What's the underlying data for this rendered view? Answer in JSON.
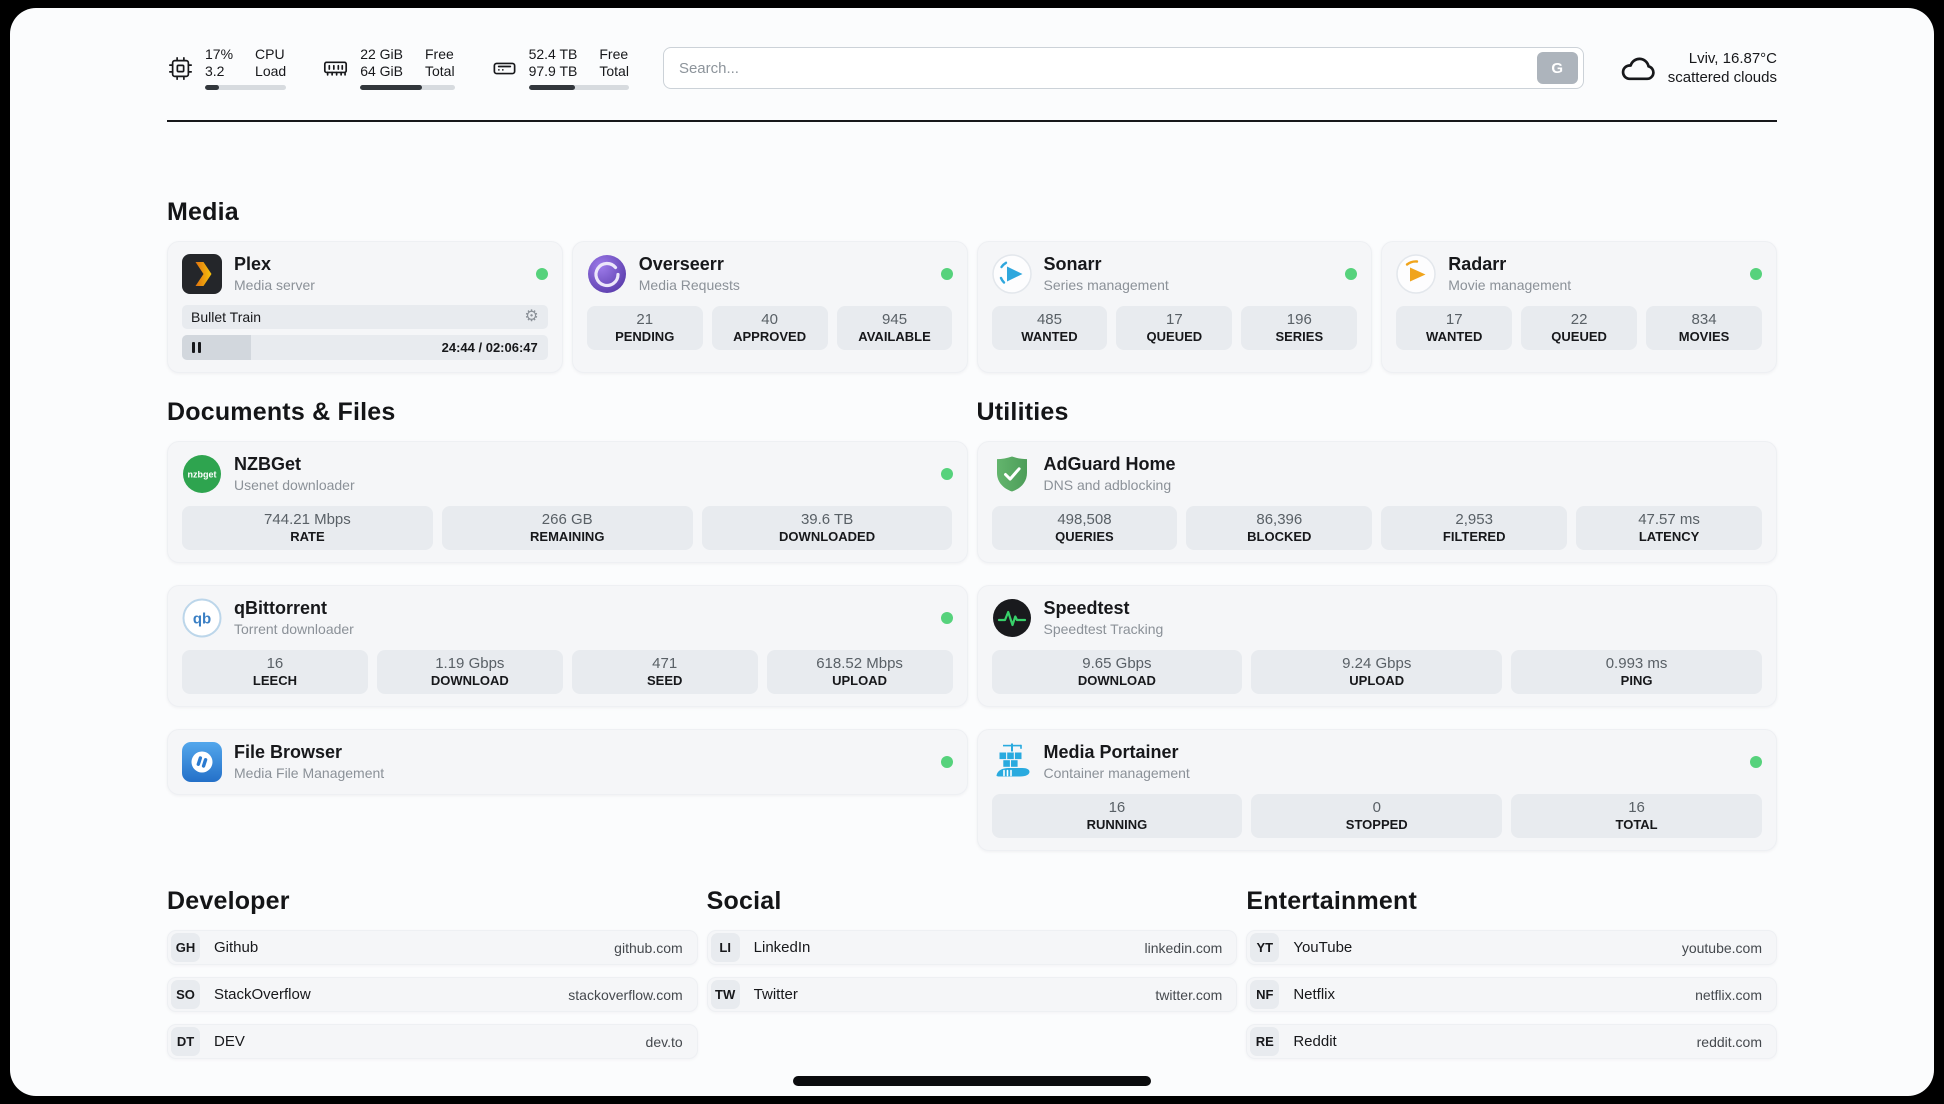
{
  "colors": {
    "status_online": "#56d27c",
    "page_background": "#fbfcfd",
    "card_background": "#f5f6f8",
    "stat_background": "#e8ebef",
    "text_dark": "#17181b",
    "text_muted": "#8b9198",
    "plex_gold": "#e5a00d",
    "sonarr_blue": "#2fa7dd",
    "radarr_gold": "#f0a41c",
    "adguard_green": "#5bab65",
    "portainer_blue": "#29aadf"
  },
  "icons": {
    "gear": "⚙"
  },
  "header": {
    "cpu": {
      "value_1": "17%",
      "label_1": "CPU",
      "value_2": "3.2",
      "label_2": "Load",
      "progress_pct": 17
    },
    "ram": {
      "value_1": "22 GiB",
      "label_1": "Free",
      "value_2": "64 GiB",
      "label_2": "Total",
      "progress_pct": 66
    },
    "disk": {
      "value_1": "52.4 TB",
      "label_1": "Free",
      "value_2": "97.9 TB",
      "label_2": "Total",
      "progress_pct": 46
    },
    "search": {
      "placeholder": "Search...",
      "button_label": "G"
    },
    "weather": {
      "location": "Lviv, 16.87°C",
      "condition": "scattered clouds"
    }
  },
  "media": {
    "title": "Media",
    "plex": {
      "title": "Plex",
      "subtitle": "Media server",
      "now_playing": "Bullet Train",
      "time": "24:44 / 02:06:47",
      "progress_pct": 19
    },
    "overseerr": {
      "title": "Overseerr",
      "subtitle": "Media Requests",
      "stats": [
        {
          "value": "21",
          "label": "PENDING"
        },
        {
          "value": "40",
          "label": "APPROVED"
        },
        {
          "value": "945",
          "label": "AVAILABLE"
        }
      ]
    },
    "sonarr": {
      "title": "Sonarr",
      "subtitle": "Series management",
      "stats": [
        {
          "value": "485",
          "label": "WANTED"
        },
        {
          "value": "17",
          "label": "QUEUED"
        },
        {
          "value": "196",
          "label": "SERIES"
        }
      ]
    },
    "radarr": {
      "title": "Radarr",
      "subtitle": "Movie management",
      "stats": [
        {
          "value": "17",
          "label": "WANTED"
        },
        {
          "value": "22",
          "label": "QUEUED"
        },
        {
          "value": "834",
          "label": "MOVIES"
        }
      ]
    }
  },
  "documents": {
    "title": "Documents & Files",
    "nzbget": {
      "title": "NZBGet",
      "subtitle": "Usenet downloader",
      "stats": [
        {
          "value": "744.21 Mbps",
          "label": "RATE"
        },
        {
          "value": "266 GB",
          "label": "REMAINING"
        },
        {
          "value": "39.6 TB",
          "label": "DOWNLOADED"
        }
      ]
    },
    "qbittorrent": {
      "title": "qBittorrent",
      "subtitle": "Torrent downloader",
      "stats": [
        {
          "value": "16",
          "label": "LEECH"
        },
        {
          "value": "1.19 Gbps",
          "label": "DOWNLOAD"
        },
        {
          "value": "471",
          "label": "SEED"
        },
        {
          "value": "618.52 Mbps",
          "label": "UPLOAD"
        }
      ]
    },
    "filebrowser": {
      "title": "File Browser",
      "subtitle": "Media File Management"
    }
  },
  "utilities": {
    "title": "Utilities",
    "adguard": {
      "title": "AdGuard Home",
      "subtitle": "DNS and adblocking",
      "stats": [
        {
          "value": "498,508",
          "label": "QUERIES"
        },
        {
          "value": "86,396",
          "label": "BLOCKED"
        },
        {
          "value": "2,953",
          "label": "FILTERED"
        },
        {
          "value": "47.57 ms",
          "label": "LATENCY"
        }
      ]
    },
    "speedtest": {
      "title": "Speedtest",
      "subtitle": "Speedtest Tracking",
      "stats": [
        {
          "value": "9.65 Gbps",
          "label": "DOWNLOAD"
        },
        {
          "value": "9.24 Gbps",
          "label": "UPLOAD"
        },
        {
          "value": "0.993 ms",
          "label": "PING"
        }
      ]
    },
    "portainer": {
      "title": "Media Portainer",
      "subtitle": "Container management",
      "stats": [
        {
          "value": "16",
          "label": "RUNNING"
        },
        {
          "value": "0",
          "label": "STOPPED"
        },
        {
          "value": "16",
          "label": "TOTAL"
        }
      ]
    }
  },
  "bookmarks": {
    "developer": {
      "title": "Developer",
      "items": [
        {
          "abbr": "GH",
          "name": "Github",
          "url": "github.com"
        },
        {
          "abbr": "SO",
          "name": "StackOverflow",
          "url": "stackoverflow.com"
        },
        {
          "abbr": "DT",
          "name": "DEV",
          "url": "dev.to"
        }
      ]
    },
    "social": {
      "title": "Social",
      "items": [
        {
          "abbr": "LI",
          "name": "LinkedIn",
          "url": "linkedin.com"
        },
        {
          "abbr": "TW",
          "name": "Twitter",
          "url": "twitter.com"
        }
      ]
    },
    "entertainment": {
      "title": "Entertainment",
      "items": [
        {
          "abbr": "YT",
          "name": "YouTube",
          "url": "youtube.com"
        },
        {
          "abbr": "NF",
          "name": "Netflix",
          "url": "netflix.com"
        },
        {
          "abbr": "RE",
          "name": "Reddit",
          "url": "reddit.com"
        }
      ]
    }
  }
}
